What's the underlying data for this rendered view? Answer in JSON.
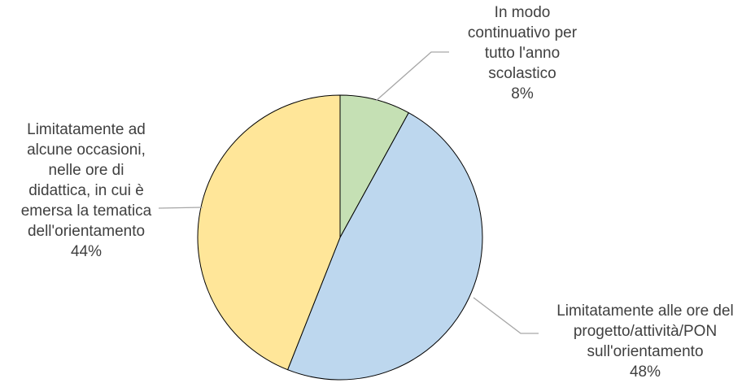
{
  "chart_data": {
    "type": "pie",
    "title": "",
    "start_angle_deg": 0,
    "direction": "clockwise",
    "slices": [
      {
        "label_lines": [
          "In modo",
          "continuativo per",
          "tutto l'anno",
          "scolastico"
        ],
        "label": "In modo continuativo per tutto l'anno scolastico",
        "value": 8,
        "value_label": "8%",
        "color": "#C5E0B4"
      },
      {
        "label_lines": [
          "Limitatamente alle ore del",
          "progetto/attività/PON",
          "sull'orientamento"
        ],
        "label": "Limitatamente alle ore del progetto/attività/PON sull'orientamento",
        "value": 48,
        "value_label": "48%",
        "color": "#BDD7EE"
      },
      {
        "label_lines": [
          "Limitatamente ad",
          "alcune occasioni,",
          "nelle ore di",
          "didattica, in cui è",
          "emersa la tematica",
          "dell'orientamento"
        ],
        "label": "Limitatamente ad alcune occasioni, nelle ore di didattica, in cui è emersa la tematica dell'orientamento",
        "value": 44,
        "value_label": "44%",
        "color": "#FFE699"
      }
    ],
    "slice_stroke_color": "#000000",
    "leader_line_color": "#A6A6A6",
    "text_color": "#404040"
  }
}
